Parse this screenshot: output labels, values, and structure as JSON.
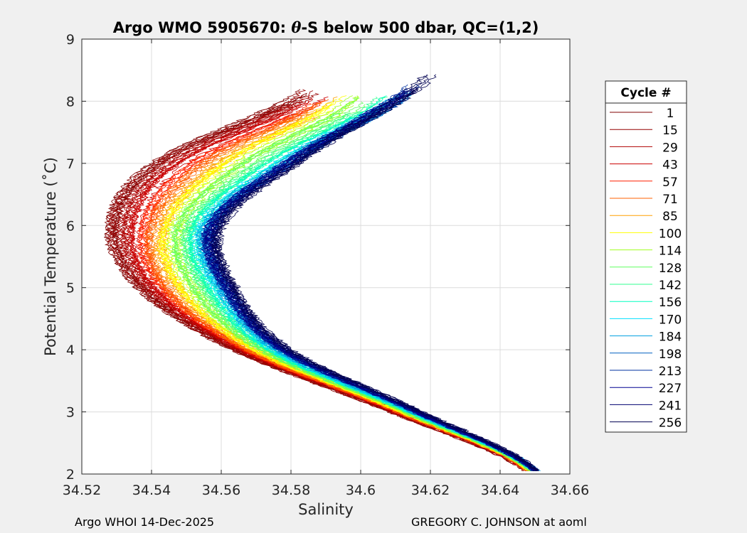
{
  "chart_data": {
    "type": "line",
    "title_prefix": "Argo WMO 5905670: ",
    "title_symbol": "θ",
    "title_suffix": "-S below 500 dbar,  QC=(1,2)",
    "xlabel": "Salinity",
    "ylabel": "Potential Temperature (˚C)",
    "xlim": [
      34.52,
      34.66
    ],
    "ylim": [
      2,
      9
    ],
    "xticks": [
      "34.52",
      "34.54",
      "34.56",
      "34.58",
      "34.6",
      "34.62",
      "34.64",
      "34.66"
    ],
    "yticks": [
      "2",
      "3",
      "4",
      "5",
      "6",
      "7",
      "8",
      "9"
    ],
    "grid": true,
    "legend_title": "Cycle #",
    "legend_position": "right-outside",
    "series": [
      {
        "name": "1",
        "color": "#800000",
        "salinity_at": {
          "t2.05": 34.6475,
          "t3": 34.609,
          "t4": 34.564,
          "t5": 34.537,
          "t6": 34.529,
          "t7": 34.542,
          "t8.25": 34.586
        }
      },
      {
        "name": "15",
        "color": "#960000",
        "salinity_at": {
          "t2.05": 34.6475,
          "t3": 34.609,
          "t4": 34.5645,
          "t5": 34.538,
          "t6": 34.53,
          "t7": 34.543,
          "t8.2": 34.5865
        }
      },
      {
        "name": "29",
        "color": "#b00000",
        "salinity_at": {
          "t2.05": 34.6478,
          "t3": 34.6095,
          "t4": 34.565,
          "t5": 34.539,
          "t6": 34.532,
          "t7": 34.545,
          "t8.2": 34.587
        }
      },
      {
        "name": "43",
        "color": "#cc0000",
        "salinity_at": {
          "t2.05": 34.648,
          "t3": 34.61,
          "t4": 34.566,
          "t5": 34.541,
          "t6": 34.535,
          "t7": 34.548,
          "t8.15": 34.589
        }
      },
      {
        "name": "57",
        "color": "#ff2000",
        "salinity_at": {
          "t2.05": 34.6482,
          "t3": 34.6105,
          "t4": 34.567,
          "t5": 34.543,
          "t6": 34.538,
          "t7": 34.552,
          "t8.1": 34.59
        }
      },
      {
        "name": "71",
        "color": "#ff6000",
        "salinity_at": {
          "t2.05": 34.6484,
          "t3": 34.611,
          "t4": 34.568,
          "t5": 34.545,
          "t6": 34.541,
          "t7": 34.556,
          "t8.1": 34.592
        }
      },
      {
        "name": "85",
        "color": "#ffa000",
        "salinity_at": {
          "t2.05": 34.6486,
          "t3": 34.6115,
          "t4": 34.569,
          "t5": 34.547,
          "t6": 34.543,
          "t7": 34.559,
          "t8.1": 34.594
        }
      },
      {
        "name": "100",
        "color": "#ffff00",
        "salinity_at": {
          "t2.05": 34.6488,
          "t3": 34.612,
          "t4": 34.57,
          "t5": 34.549,
          "t6": 34.545,
          "t7": 34.562,
          "t8.1": 34.596
        }
      },
      {
        "name": "114",
        "color": "#a0ff20",
        "salinity_at": {
          "t2.05": 34.649,
          "t3": 34.6125,
          "t4": 34.571,
          "t5": 34.551,
          "t6": 34.547,
          "t7": 34.565,
          "t8.1": 34.599
        }
      },
      {
        "name": "128",
        "color": "#60ff60",
        "salinity_at": {
          "t2.05": 34.6492,
          "t3": 34.613,
          "t4": 34.572,
          "t5": 34.553,
          "t6": 34.549,
          "t7": 34.568,
          "t8.1": 34.602
        }
      },
      {
        "name": "142",
        "color": "#30ff90",
        "salinity_at": {
          "t2.05": 34.6494,
          "t3": 34.6135,
          "t4": 34.573,
          "t5": 34.555,
          "t6": 34.551,
          "t7": 34.571,
          "t8.1": 34.605
        }
      },
      {
        "name": "156",
        "color": "#00ffc0",
        "salinity_at": {
          "t2.05": 34.6496,
          "t3": 34.614,
          "t4": 34.574,
          "t5": 34.557,
          "t6": 34.553,
          "t7": 34.574,
          "t8.1": 34.608
        }
      },
      {
        "name": "170",
        "color": "#00e0ff",
        "salinity_at": {
          "t2.05": 34.6498,
          "t3": 34.6145,
          "t4": 34.575,
          "t5": 34.559,
          "t6": 34.555,
          "t7": 34.577,
          "t8.15": 34.611
        }
      },
      {
        "name": "184",
        "color": "#00a0e0",
        "salinity_at": {
          "t2.05": 34.65,
          "t3": 34.615,
          "t4": 34.576,
          "t5": 34.56,
          "t6": 34.556,
          "t7": 34.578,
          "t8.2": 34.613
        }
      },
      {
        "name": "198",
        "color": "#0060c0",
        "salinity_at": {
          "t2.05": 34.65,
          "t3": 34.6155,
          "t4": 34.577,
          "t5": 34.561,
          "t6": 34.557,
          "t7": 34.579,
          "t8.25": 34.615
        }
      },
      {
        "name": "213",
        "color": "#0030a0",
        "salinity_at": {
          "t2.05": 34.65,
          "t3": 34.616,
          "t4": 34.5775,
          "t5": 34.5615,
          "t6": 34.5575,
          "t7": 34.5795,
          "t8.3": 34.616
        }
      },
      {
        "name": "227",
        "color": "#000090",
        "salinity_at": {
          "t2.05": 34.6502,
          "t3": 34.616,
          "t4": 34.578,
          "t5": 34.562,
          "t6": 34.558,
          "t7": 34.58,
          "t8.35": 34.617
        }
      },
      {
        "name": "241",
        "color": "#000070",
        "salinity_at": {
          "t2.05": 34.6502,
          "t3": 34.6165,
          "t4": 34.5785,
          "t5": 34.5625,
          "t6": 34.5585,
          "t7": 34.5805,
          "t8.4": 34.618
        }
      },
      {
        "name": "256",
        "color": "#000050",
        "salinity_at": {
          "t2.05": 34.6503,
          "t3": 34.617,
          "t4": 34.579,
          "t5": 34.563,
          "t6": 34.559,
          "t7": 34.581,
          "t8.45": 34.619
        }
      }
    ]
  },
  "footer": {
    "left": "Argo WHOI 14-Dec-2025",
    "right": "GREGORY C. JOHNSON at aoml"
  },
  "colors": {
    "figure_background": "#f0f0f0",
    "axes_background": "#ffffff",
    "grid": "#dcdcdc"
  }
}
